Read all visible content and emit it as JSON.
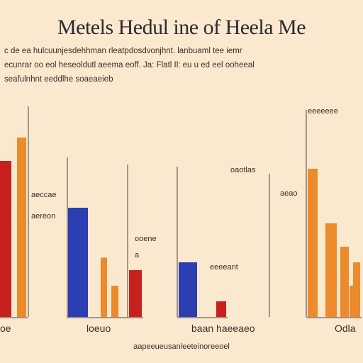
{
  "title": "Metels Hedul ine of Heela Me",
  "description": [
    "c de ea hulcuunjesdehhman rleatpdosdvonjhnt. lanbuaml tee iemr",
    "ecunrar oo eol heseoldutl aeema eoff. Ja: Flatl Il: eu u ed eel ooheeal",
    "seafulnhnt eeddlhe soaeaeieb"
  ],
  "colors": {
    "background": "#fbe9cf",
    "red": "#c8201e",
    "orange": "#ec8a2c",
    "blue": "#2b3fb2",
    "axis": "#4a4040"
  },
  "chart_data": [
    {
      "type": "bar",
      "panel": "left",
      "series": [
        {
          "color": "red",
          "values": [
            100
          ]
        },
        {
          "color": "orange",
          "values": [
            115
          ]
        }
      ],
      "annotations": [
        "aeccae",
        "aereon"
      ],
      "xlabel": "oe"
    },
    {
      "type": "bar",
      "panel": "center-left",
      "series": [
        {
          "color": "blue",
          "values": [
            70
          ]
        },
        {
          "color": "orange",
          "values": [
            38
          ]
        },
        {
          "color": "orange",
          "values": [
            20
          ]
        },
        {
          "color": "red",
          "values": [
            30
          ]
        }
      ],
      "annotations": [
        "ooene",
        "a"
      ],
      "xlabel": "loeuo"
    },
    {
      "type": "bar",
      "panel": "center-right",
      "series": [
        {
          "color": "blue",
          "values": [
            35
          ]
        },
        {
          "color": "red",
          "values": [
            10
          ]
        }
      ],
      "annotations": [
        "oaotlas",
        "eeeeant"
      ],
      "xlabel": "baan haeeaeo"
    },
    {
      "type": "bar",
      "panel": "right",
      "series": [
        {
          "color": "orange",
          "values": [
            95
          ]
        },
        {
          "color": "orange",
          "values": [
            60
          ]
        },
        {
          "color": "orange",
          "values": [
            45
          ]
        },
        {
          "color": "orange",
          "values": [
            20
          ]
        },
        {
          "color": "orange",
          "values": [
            35
          ]
        }
      ],
      "annotations": [
        "eeeeeee",
        "aeao"
      ],
      "xlabel": "Odla"
    }
  ],
  "footer": "aapeeueusanleeteinoreeoel"
}
